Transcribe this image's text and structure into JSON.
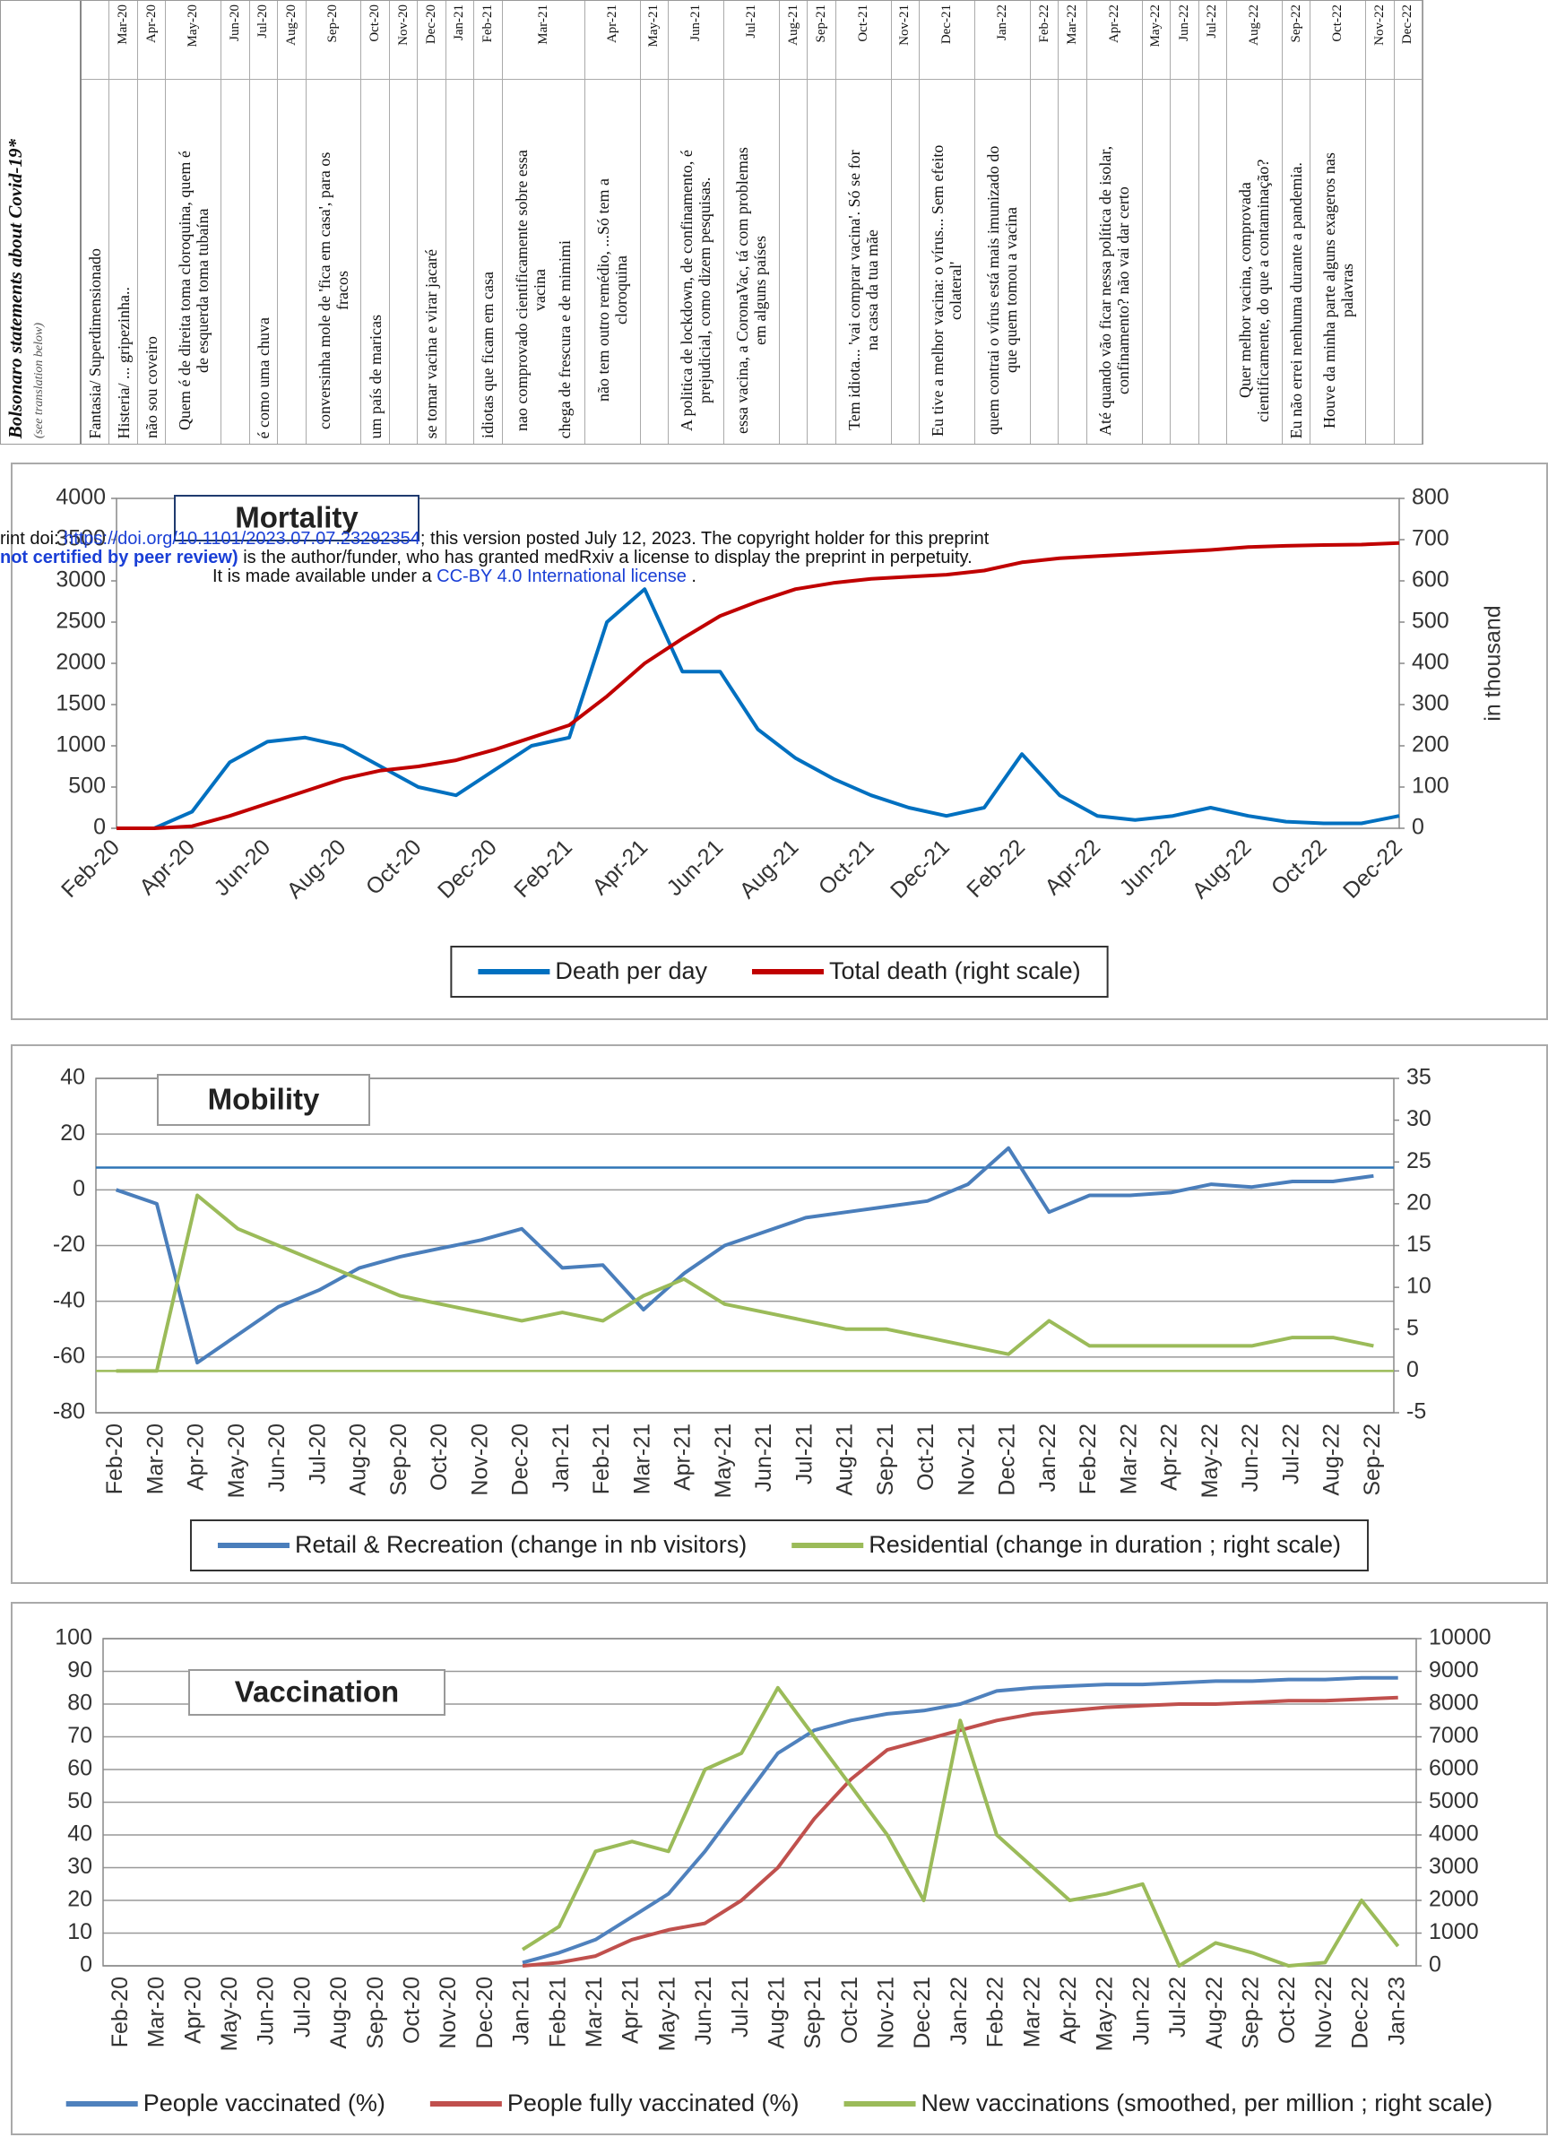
{
  "statements_table": {
    "title": "Bolsonaro statements about Covid-19*",
    "subtitle": "(see translation below)",
    "columns": [
      {
        "month": null,
        "statements": [
          "Fantasia/ Superdimensionado"
        ]
      },
      {
        "month": "Mar-20",
        "statements": [
          "Histeria/ ... gripezinha.."
        ]
      },
      {
        "month": "Apr-20",
        "statements": [
          "não sou coveiro"
        ]
      },
      {
        "month": "May-20",
        "statements": [
          "Quem é de direita toma cloroquina, quem é de esquerda toma tubaína"
        ]
      },
      {
        "month": "Jun-20",
        "statements": []
      },
      {
        "month": "Jul-20",
        "statements": [
          "é como uma chuva"
        ]
      },
      {
        "month": "Aug-20",
        "statements": []
      },
      {
        "month": "Sep-20",
        "statements": [
          "conversinha mole de 'fica em casa', para os fracos"
        ]
      },
      {
        "month": "Oct-20",
        "statements": [
          "um país de maricas"
        ]
      },
      {
        "month": "Nov-20",
        "statements": []
      },
      {
        "month": "Dec-20",
        "statements": [
          "se tomar vacina e virar jacaré"
        ]
      },
      {
        "month": "Jan-21",
        "statements": []
      },
      {
        "month": "Feb-21",
        "statements": [
          "idiotas que ficam em casa"
        ]
      },
      {
        "month": "Mar-21",
        "statements": [
          "nao comprovado cientificamente sobre essa vacina",
          "chega de frescura e de mimimi"
        ]
      },
      {
        "month": "Apr-21",
        "statements": [
          "não tem outro remédio, ...Só tem a cloroquina"
        ]
      },
      {
        "month": "May-21",
        "statements": []
      },
      {
        "month": "Jun-21",
        "statements": [
          "A politica de lockdown, de confinamento, é prejudicial, como dizem pesquisas."
        ]
      },
      {
        "month": "Jul-21",
        "statements": [
          "essa vacina, a CoronaVac, tá com problemas em alguns países"
        ]
      },
      {
        "month": "Aug-21",
        "statements": []
      },
      {
        "month": "Sep-21",
        "statements": []
      },
      {
        "month": "Oct-21",
        "statements": [
          "Tem idiota... 'vai comprar vacina'. Só se for na casa da tua mãe"
        ]
      },
      {
        "month": "Nov-21",
        "statements": []
      },
      {
        "month": "Dec-21",
        "statements": [
          "Eu tive a melhor vacina: o vírus... Sem efeito colateral'"
        ]
      },
      {
        "month": "Jan-22",
        "statements": [
          "quem contrai o vírus está mais imunizado do que quem tomou a vacina"
        ]
      },
      {
        "month": "Feb-22",
        "statements": []
      },
      {
        "month": "Mar-22",
        "statements": []
      },
      {
        "month": "Apr-22",
        "statements": [
          "Até quando vão ficar nessa política de isolar, confinamento? não vai dar certo"
        ]
      },
      {
        "month": "May-22",
        "statements": []
      },
      {
        "month": "Jun-22",
        "statements": []
      },
      {
        "month": "Jul-22",
        "statements": []
      },
      {
        "month": "Aug-22",
        "statements": [
          "Quer melhor vacina, comprovada cientificamente, do que a contaminação?"
        ]
      },
      {
        "month": "Sep-22",
        "statements": [
          "Eu não errei nenhuma durante a pandemia."
        ]
      },
      {
        "month": "Oct-22",
        "statements": [
          "Houve da minha parte alguns exageros nas palavras"
        ]
      },
      {
        "month": "Nov-22",
        "statements": []
      },
      {
        "month": "Dec-22",
        "statements": []
      }
    ]
  },
  "notice": [
    [
      "rint doi: ",
      "https://doi.org/10.1101/2023.07.07.23292354",
      "; this version posted July 12, 2023. The copyright holder for this preprint"
    ],
    [
      "not certified by peer review)",
      " is the author/funder, who has granted medRxiv a license to display the preprint in perpetuity."
    ],
    [
      "It is made available under a ",
      "CC-BY 4.0 International license",
      " ."
    ]
  ],
  "chart_data": [
    {
      "type": "line",
      "title": "Mortality",
      "y2_label": "in thousand",
      "categories": [
        "Feb-20",
        null,
        "Apr-20",
        null,
        "Jun-20",
        null,
        "Aug-20",
        null,
        "Oct-20",
        null,
        "Dec-20",
        null,
        "Feb-21",
        null,
        "Apr-21",
        null,
        "Jun-21",
        null,
        "Aug-21",
        null,
        "Oct-21",
        null,
        "Dec-21",
        null,
        "Feb-22",
        null,
        "Apr-22",
        null,
        "Jun-22",
        null,
        "Aug-22",
        null,
        "Oct-22",
        null,
        "Dec-22"
      ],
      "series": [
        {
          "name": "Death per day",
          "color": "#0070c0",
          "axis": "y",
          "values": [
            0,
            0,
            200,
            800,
            1050,
            1100,
            1000,
            750,
            500,
            400,
            700,
            1000,
            1100,
            2500,
            2900,
            1900,
            1900,
            1200,
            850,
            600,
            400,
            250,
            150,
            250,
            900,
            400,
            150,
            100,
            150,
            250,
            150,
            80,
            60,
            60,
            150
          ]
        },
        {
          "name": "Total death (right scale)",
          "color": "#c00000",
          "axis": "y2",
          "values": [
            0,
            0,
            5,
            30,
            60,
            90,
            120,
            140,
            150,
            165,
            190,
            220,
            250,
            320,
            400,
            460,
            515,
            550,
            580,
            595,
            605,
            610,
            615,
            625,
            645,
            655,
            660,
            665,
            670,
            675,
            682,
            685,
            687,
            688,
            692
          ]
        }
      ],
      "ylim": [
        0,
        4000
      ],
      "yticks": [
        0,
        500,
        1000,
        1500,
        2000,
        2500,
        3000,
        3500,
        4000
      ],
      "y2lim": [
        0,
        800
      ],
      "y2ticks": [
        0,
        100,
        200,
        300,
        400,
        500,
        600,
        700,
        800
      ],
      "grid": false,
      "legend": "bottom"
    },
    {
      "type": "line",
      "title": "Mobility",
      "categories": [
        "Feb-20",
        "Mar-20",
        "Apr-20",
        "May-20",
        "Jun-20",
        "Jul-20",
        "Aug-20",
        "Sep-20",
        "Oct-20",
        "Nov-20",
        "Dec-20",
        "Jan-21",
        "Feb-21",
        "Mar-21",
        "Apr-21",
        "May-21",
        "Jun-21",
        "Jul-21",
        "Aug-21",
        "Sep-21",
        "Oct-21",
        "Nov-21",
        "Dec-21",
        "Jan-22",
        "Feb-22",
        "Mar-22",
        "Apr-22",
        "May-22",
        "Jun-22",
        "Jul-22",
        "Aug-22",
        "Sep-22"
      ],
      "series": [
        {
          "name": "Retail & Recreation (change in nb visitors)",
          "color": "#4a7ebb",
          "axis": "y",
          "values": [
            0,
            -5,
            -62,
            -52,
            -42,
            -36,
            -28,
            -24,
            -21,
            -18,
            -14,
            -28,
            -27,
            -43,
            -30,
            -20,
            -15,
            -10,
            -8,
            -6,
            -4,
            2,
            15,
            -8,
            -2,
            -2,
            -1,
            2,
            1,
            3,
            3,
            5
          ]
        },
        {
          "name": "Residential (change in duration ; right scale)",
          "color": "#9bbb59",
          "axis": "y2",
          "values": [
            0,
            0,
            21,
            17,
            15,
            13,
            11,
            9,
            8,
            7,
            6,
            7,
            6,
            9,
            11,
            8,
            7,
            6,
            5,
            5,
            4,
            3,
            2,
            6,
            3,
            3,
            3,
            3,
            3,
            4,
            4,
            3
          ]
        }
      ],
      "reference_lines": [
        {
          "value": 8,
          "axis": "y",
          "color": "#2e75b6"
        },
        {
          "value": 0,
          "axis": "y2",
          "color": "#9bbb59"
        }
      ],
      "ylim": [
        -80,
        40
      ],
      "yticks": [
        -80,
        -60,
        -40,
        -20,
        0,
        20,
        40
      ],
      "y2lim": [
        -5,
        35
      ],
      "y2ticks": [
        -5,
        0,
        5,
        10,
        15,
        20,
        25,
        30,
        35
      ],
      "grid": true,
      "legend": "bottom"
    },
    {
      "type": "line",
      "title": "Vaccination",
      "categories": [
        "Feb-20",
        "Mar-20",
        "Apr-20",
        "May-20",
        "Jun-20",
        "Jul-20",
        "Aug-20",
        "Sep-20",
        "Oct-20",
        "Nov-20",
        "Dec-20",
        "Jan-21",
        "Feb-21",
        "Mar-21",
        "Apr-21",
        "May-21",
        "Jun-21",
        "Jul-21",
        "Aug-21",
        "Sep-21",
        "Oct-21",
        "Nov-21",
        "Dec-21",
        "Jan-22",
        "Feb-22",
        "Mar-22",
        "Apr-22",
        "May-22",
        "Jun-22",
        "Jul-22",
        "Aug-22",
        "Sep-22",
        "Oct-22",
        "Nov-22",
        "Dec-22",
        "Jan-23"
      ],
      "series": [
        {
          "name": "People vaccinated (%)",
          "color": "#4f81bd",
          "axis": "y",
          "values": [
            null,
            null,
            null,
            null,
            null,
            null,
            null,
            null,
            null,
            null,
            null,
            1,
            4,
            8,
            15,
            22,
            35,
            50,
            65,
            72,
            75,
            77,
            78,
            80,
            84,
            85,
            85.5,
            86,
            86,
            86.5,
            87,
            87,
            87.5,
            87.5,
            88,
            88
          ]
        },
        {
          "name": "People fully vaccinated (%)",
          "color": "#c0504d",
          "axis": "y",
          "values": [
            null,
            null,
            null,
            null,
            null,
            null,
            null,
            null,
            null,
            null,
            null,
            0,
            1,
            3,
            8,
            11,
            13,
            20,
            30,
            45,
            57,
            66,
            69,
            72,
            75,
            77,
            78,
            79,
            79.5,
            80,
            80,
            80.5,
            81,
            81,
            81.5,
            82
          ]
        },
        {
          "name": "New vaccinations (smoothed, per million ; right scale)",
          "color": "#9bbb59",
          "axis": "y2",
          "values": [
            null,
            null,
            null,
            null,
            null,
            null,
            null,
            null,
            null,
            null,
            null,
            500,
            1200,
            3500,
            3800,
            3500,
            6000,
            6500,
            8500,
            7000,
            5500,
            4000,
            2000,
            7500,
            4000,
            3000,
            2000,
            2200,
            2500,
            0,
            700,
            400,
            0,
            100,
            2000,
            600
          ]
        }
      ],
      "ylim": [
        0,
        100
      ],
      "yticks": [
        0,
        10,
        20,
        30,
        40,
        50,
        60,
        70,
        80,
        90,
        100
      ],
      "y2lim": [
        0,
        10000
      ],
      "y2ticks": [
        0,
        1000,
        2000,
        3000,
        4000,
        5000,
        6000,
        7000,
        8000,
        9000,
        10000
      ],
      "grid": true,
      "legend": "bottom"
    }
  ]
}
